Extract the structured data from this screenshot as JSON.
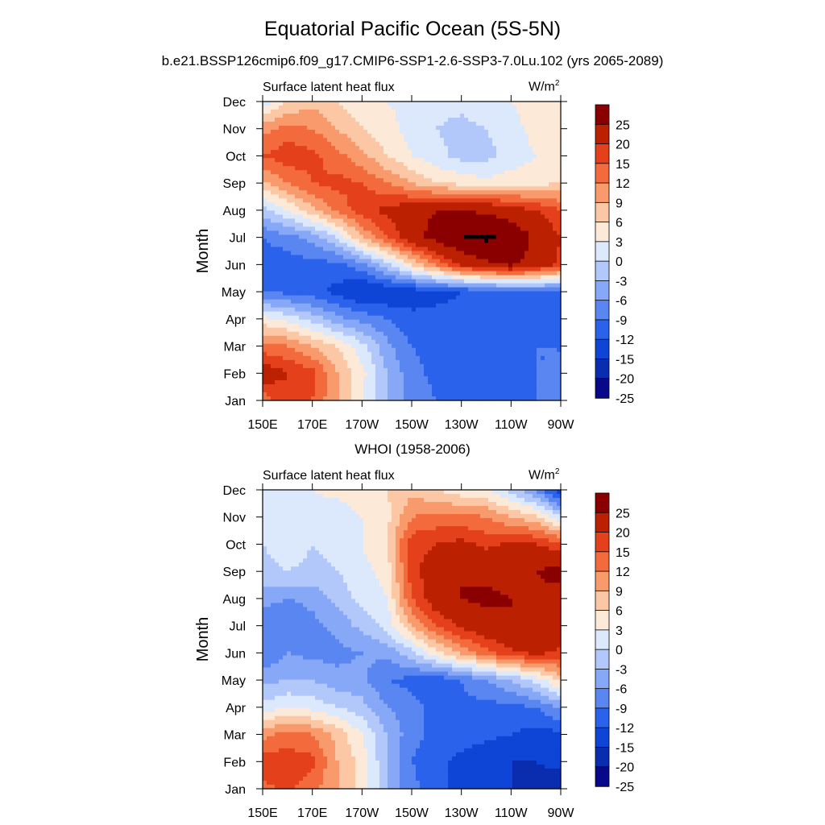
{
  "figure": {
    "title": "Equatorial Pacific Ocean (5S-5N)",
    "subtitle": "b.e21.BSSP126cmip6.f09_g17.CMIP6-SSP1-2.6-SSP3-7.0Lu.102 (yrs 2065-2089)",
    "panel2_title": "WHOI (1958-2006)"
  },
  "colors": {
    "levels": [
      -25,
      -20,
      -15,
      -12,
      -9,
      -6,
      -3,
      0,
      3,
      6,
      9,
      12,
      15,
      20,
      25
    ],
    "palette": [
      "#08088a",
      "#0a2db0",
      "#0f45d6",
      "#2a62ec",
      "#5a86f2",
      "#86a8f6",
      "#b3c8fa",
      "#dce8fc",
      "#fde9d8",
      "#fcc7a4",
      "#f99a6c",
      "#f36a3c",
      "#e4401c",
      "#bb2000",
      "#8a0000"
    ],
    "colorbar_labels": [
      "25",
      "20",
      "15",
      "12",
      "9",
      "6",
      "3",
      "0",
      "-3",
      "-6",
      "-9",
      "-12",
      "-15",
      "-20",
      "-25"
    ]
  },
  "chart_data": [
    {
      "type": "heatmap",
      "panel_title": "",
      "left_string": "Surface latent heat flux",
      "units": "W/m",
      "units_sup": "2",
      "xlabel": "",
      "ylabel": "Month",
      "x_ticks": [
        "150E",
        "170E",
        "170W",
        "150W",
        "130W",
        "110W",
        "90W"
      ],
      "y_ticks": [
        "Jan",
        "Feb",
        "Mar",
        "Apr",
        "May",
        "Jun",
        "Jul",
        "Aug",
        "Sep",
        "Oct",
        "Nov",
        "Dec"
      ],
      "x": [
        150,
        160,
        170,
        180,
        190,
        200,
        210,
        220,
        230,
        240,
        250,
        260,
        270
      ],
      "y": [
        1,
        2,
        3,
        4,
        5,
        6,
        7,
        8,
        9,
        10,
        11,
        12
      ],
      "z": [
        [
          10,
          14,
          12,
          6,
          0,
          -6,
          -10,
          -12,
          -12,
          -12,
          -12,
          -12,
          -11
        ],
        [
          18,
          15,
          13,
          6,
          1,
          -6,
          -11,
          -13,
          -13,
          -13,
          -13,
          -12,
          -12
        ],
        [
          10,
          9,
          6,
          3,
          -2,
          -8,
          -12,
          -13,
          -13,
          -13,
          -12,
          -12,
          -12
        ],
        [
          1,
          -1,
          -4,
          -8,
          -10,
          -12,
          -14,
          -14,
          -14,
          -14,
          -13,
          -13,
          -13
        ],
        [
          -12,
          -13,
          -14,
          -16,
          -19,
          -18,
          -17,
          -16,
          -15,
          -14,
          -14,
          -13,
          -13
        ],
        [
          -14,
          -14,
          -13,
          -13,
          -10,
          -4,
          3,
          10,
          16,
          19,
          21,
          18,
          14
        ],
        [
          -12,
          -10,
          -8,
          -3,
          6,
          12,
          18,
          22,
          25,
          26,
          24,
          19,
          15
        ],
        [
          -4,
          0,
          5,
          10,
          14,
          16,
          18,
          20,
          20,
          19,
          17,
          15,
          12
        ],
        [
          5,
          9,
          12,
          13,
          12,
          9,
          6,
          3,
          2,
          1,
          2,
          2,
          3
        ],
        [
          12,
          14,
          13,
          10,
          7,
          3,
          0,
          -2,
          -4,
          -4,
          -2,
          0,
          2
        ],
        [
          8,
          10,
          9,
          6,
          3,
          1,
          -1,
          -3,
          -4,
          -3,
          -1,
          1,
          3
        ],
        [
          -2,
          3,
          5,
          3,
          1,
          0,
          -1,
          -2,
          -2,
          -1,
          0,
          1,
          2
        ]
      ]
    },
    {
      "type": "heatmap",
      "panel_title": "WHOI (1958-2006)",
      "left_string": "Surface latent heat flux",
      "units": "W/m",
      "units_sup": "2",
      "xlabel": "",
      "ylabel": "Month",
      "x_ticks": [
        "150E",
        "170E",
        "170W",
        "150W",
        "130W",
        "110W",
        "90W"
      ],
      "y_ticks": [
        "Jan",
        "Feb",
        "Mar",
        "Apr",
        "May",
        "Jun",
        "Jul",
        "Aug",
        "Sep",
        "Oct",
        "Nov",
        "Dec"
      ],
      "x": [
        150,
        160,
        170,
        180,
        190,
        200,
        210,
        220,
        230,
        240,
        250,
        260,
        270
      ],
      "y": [
        1,
        2,
        3,
        4,
        5,
        6,
        7,
        8,
        9,
        10,
        11,
        12
      ],
      "z": [
        [
          11,
          13,
          10,
          6,
          2,
          -6,
          -11,
          -14,
          -16,
          -18,
          -20,
          -22,
          -24
        ],
        [
          14,
          14,
          13,
          6,
          2,
          -6,
          -12,
          -14,
          -16,
          -18,
          -20,
          -20,
          -18
        ],
        [
          8,
          10,
          9,
          5,
          0,
          -6,
          -11,
          -13,
          -13,
          -14,
          -15,
          -16,
          -16
        ],
        [
          -2,
          0,
          -1,
          -3,
          -5,
          -9,
          -11,
          -13,
          -13,
          -13,
          -13,
          -12,
          -8
        ],
        [
          -7,
          -6,
          -6,
          -8,
          -8,
          -12,
          -13,
          -14,
          -12,
          -9,
          -6,
          -2,
          4
        ],
        [
          -12,
          -9,
          -10,
          -10,
          -9,
          -8,
          -4,
          2,
          7,
          11,
          14,
          16,
          14
        ],
        [
          -11,
          -12,
          -10,
          -8,
          -5,
          -2,
          6,
          12,
          16,
          18,
          20,
          20,
          18
        ],
        [
          -8,
          -9,
          -8,
          -5,
          -2,
          0,
          12,
          18,
          20,
          21,
          20,
          19,
          18
        ],
        [
          -4,
          -3,
          -4,
          -3,
          -1,
          1,
          14,
          17,
          20,
          19,
          18,
          20,
          22
        ],
        [
          -3,
          -1,
          -3,
          -2,
          0,
          3,
          14,
          15,
          16,
          14,
          16,
          15,
          13
        ],
        [
          -3,
          -3,
          -1,
          -2,
          0,
          2,
          9,
          10,
          10,
          9,
          6,
          4,
          -3
        ],
        [
          -2,
          -1,
          0,
          1,
          2,
          3,
          5,
          3,
          1,
          0,
          -4,
          -10,
          -18
        ]
      ]
    }
  ]
}
